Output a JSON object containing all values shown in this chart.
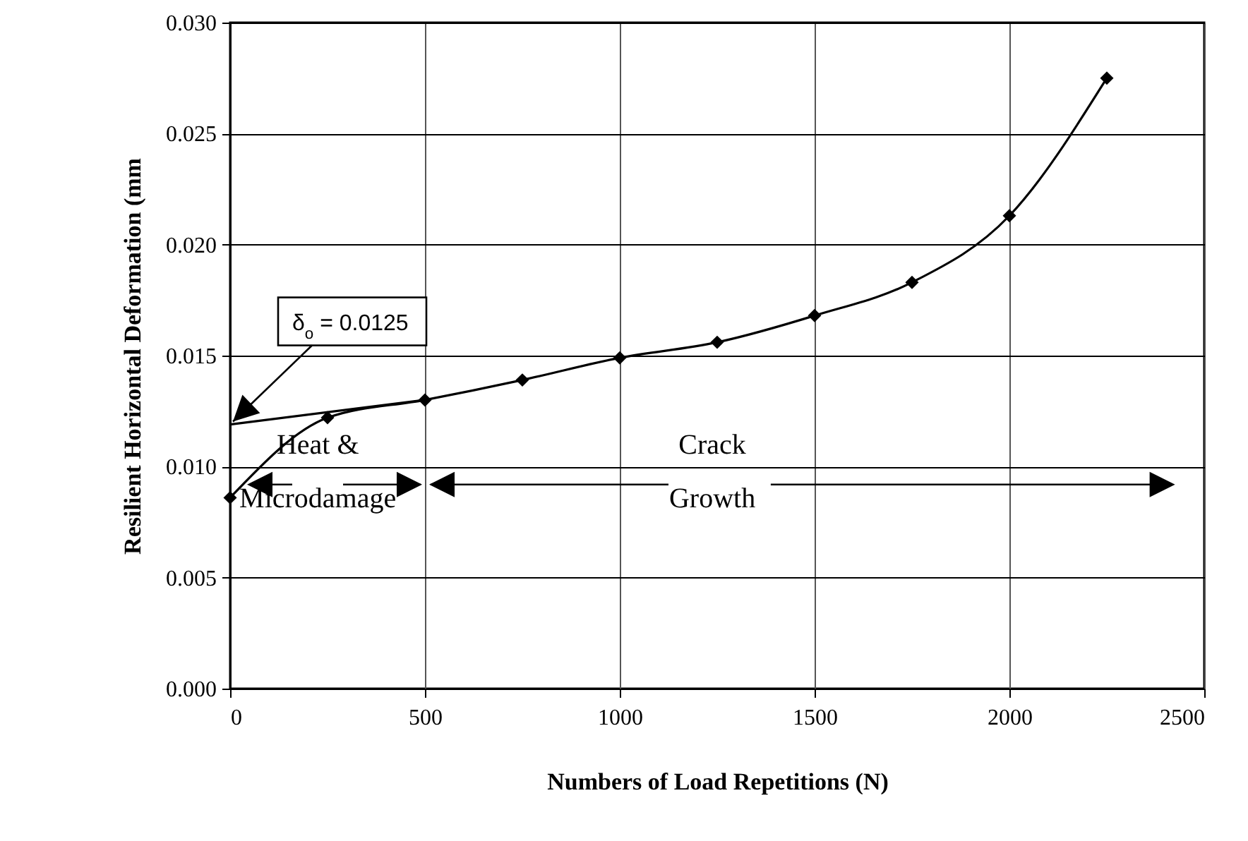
{
  "chart_data": {
    "type": "line",
    "xlabel": "Numbers of Load Repetitions (N)",
    "ylabel": "Resilient Horizontal Deformation (mm",
    "x": [
      0,
      250,
      500,
      750,
      1000,
      1250,
      1500,
      1750,
      2000,
      2250
    ],
    "series": [
      {
        "color": "#000000",
        "values": [
          0.0086,
          0.0122,
          0.013,
          0.0139,
          0.0149,
          0.0156,
          0.0168,
          0.0183,
          0.0213,
          0.0275
        ]
      },
      {
        "type": "line",
        "marker": "none",
        "color": "#000000",
        "x": [
          0,
          500
        ],
        "values": [
          0.0119,
          0.013
        ]
      }
    ],
    "marker": "diamond",
    "grid": true,
    "xlim": [
      0,
      2500
    ],
    "xticks": [
      0,
      500,
      1000,
      1500,
      2000,
      2500
    ],
    "ylim": [
      0,
      0.03
    ],
    "yticks": [
      {
        "value": 0,
        "label": "0.000"
      },
      {
        "value": 0.005,
        "label": "0.005"
      },
      {
        "value": 0.01,
        "label": "0.010"
      },
      {
        "value": 0.015,
        "label": "0.015"
      },
      {
        "value": 0.02,
        "label": "0.020"
      },
      {
        "value": 0.025,
        "label": "0.025"
      },
      {
        "value": 0.03,
        "label": "0.030"
      }
    ],
    "annotations": [
      {
        "text": "δ$_{o}$ = 0.0125",
        "x": 0,
        "y": 0.0119
      },
      "Heat & Microdamage",
      "Crack Growth"
    ]
  }
}
